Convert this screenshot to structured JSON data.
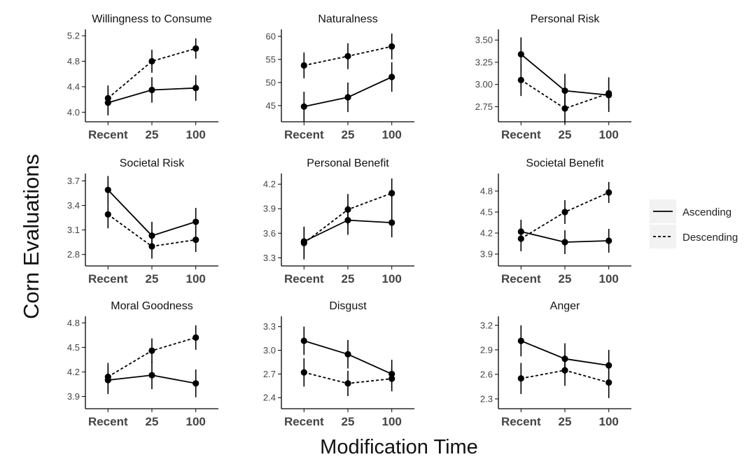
{
  "ylabel": "Corn Evaluations",
  "xlabel": "Modification Time",
  "legend": {
    "placement": "right",
    "items": [
      {
        "label": "Ascending",
        "style": "solid"
      },
      {
        "label": "Descending",
        "style": "dashed"
      }
    ]
  },
  "chart_data": [
    {
      "type": "line",
      "title": "Willingness to Consume",
      "categories": [
        "Recent",
        "25",
        "100"
      ],
      "ylim": [
        3.85,
        5.3
      ],
      "yticks": [
        4.0,
        4.4,
        4.8,
        5.2
      ],
      "ytick_labels": [
        "4.0",
        "4.4",
        "4.8",
        "5.2"
      ],
      "series": [
        {
          "name": "Ascending",
          "values": [
            4.15,
            4.35,
            4.38
          ],
          "errors": [
            0.2,
            0.2,
            0.2
          ]
        },
        {
          "name": "Descending",
          "values": [
            4.22,
            4.8,
            5.0
          ],
          "errors": [
            0.2,
            0.18,
            0.16
          ]
        }
      ]
    },
    {
      "type": "line",
      "title": "Naturalness",
      "categories": [
        "Recent",
        "25",
        "100"
      ],
      "ylim": [
        41.5,
        61.5
      ],
      "yticks": [
        45,
        50,
        55,
        60
      ],
      "ytick_labels": [
        "45",
        "50",
        "55",
        "60"
      ],
      "series": [
        {
          "name": "Ascending",
          "values": [
            44.8,
            46.8,
            51.2
          ],
          "errors": [
            3.2,
            3.2,
            3.2
          ]
        },
        {
          "name": "Descending",
          "values": [
            53.7,
            55.7,
            57.8
          ],
          "errors": [
            2.8,
            2.8,
            2.8
          ]
        }
      ]
    },
    {
      "type": "line",
      "title": "Personal Risk",
      "categories": [
        "Recent",
        "25",
        "100"
      ],
      "ylim": [
        2.58,
        3.62
      ],
      "yticks": [
        2.75,
        3.0,
        3.25,
        3.5
      ],
      "ytick_labels": [
        "2.75",
        "3.00",
        "3.25",
        "3.50"
      ],
      "series": [
        {
          "name": "Ascending",
          "values": [
            3.34,
            2.93,
            2.88
          ],
          "errors": [
            0.19,
            0.19,
            0.19
          ]
        },
        {
          "name": "Descending",
          "values": [
            3.05,
            2.73,
            2.9
          ],
          "errors": [
            0.18,
            0.17,
            0.18
          ]
        }
      ]
    },
    {
      "type": "line",
      "title": "Societal Risk",
      "categories": [
        "Recent",
        "25",
        "100"
      ],
      "ylim": [
        2.66,
        3.79
      ],
      "yticks": [
        2.8,
        3.1,
        3.4,
        3.7
      ],
      "ytick_labels": [
        "2.8",
        "3.1",
        "3.4",
        "3.7"
      ],
      "series": [
        {
          "name": "Ascending",
          "values": [
            3.59,
            3.03,
            3.2
          ],
          "errors": [
            0.17,
            0.17,
            0.17
          ]
        },
        {
          "name": "Descending",
          "values": [
            3.29,
            2.9,
            2.98
          ],
          "errors": [
            0.17,
            0.15,
            0.15
          ]
        }
      ]
    },
    {
      "type": "line",
      "title": "Personal Benefit",
      "categories": [
        "Recent",
        "25",
        "100"
      ],
      "ylim": [
        3.2,
        4.33
      ],
      "yticks": [
        3.3,
        3.6,
        3.9,
        4.2
      ],
      "ytick_labels": [
        "3.3",
        "3.6",
        "3.9",
        "4.2"
      ],
      "series": [
        {
          "name": "Ascending",
          "values": [
            3.5,
            3.76,
            3.73
          ],
          "errors": [
            0.18,
            0.18,
            0.18
          ]
        },
        {
          "name": "Descending",
          "values": [
            3.48,
            3.89,
            4.09
          ],
          "errors": [
            0.2,
            0.19,
            0.18
          ]
        }
      ]
    },
    {
      "type": "line",
      "title": "Societal Benefit",
      "categories": [
        "Recent",
        "25",
        "100"
      ],
      "ylim": [
        3.73,
        5.05
      ],
      "yticks": [
        3.9,
        4.2,
        4.5,
        4.8
      ],
      "ytick_labels": [
        "3.9",
        "4.2",
        "4.5",
        "4.8"
      ],
      "series": [
        {
          "name": "Ascending",
          "values": [
            4.22,
            4.07,
            4.09
          ],
          "errors": [
            0.17,
            0.17,
            0.17
          ]
        },
        {
          "name": "Descending",
          "values": [
            4.12,
            4.5,
            4.78
          ],
          "errors": [
            0.18,
            0.17,
            0.15
          ]
        }
      ]
    },
    {
      "type": "line",
      "title": "Moral Goodness",
      "categories": [
        "Recent",
        "25",
        "100"
      ],
      "ylim": [
        3.75,
        4.88
      ],
      "yticks": [
        3.9,
        4.2,
        4.5,
        4.8
      ],
      "ytick_labels": [
        "3.9",
        "4.2",
        "4.5",
        "4.8"
      ],
      "series": [
        {
          "name": "Ascending",
          "values": [
            4.1,
            4.16,
            4.06
          ],
          "errors": [
            0.17,
            0.17,
            0.17
          ]
        },
        {
          "name": "Descending",
          "values": [
            4.14,
            4.46,
            4.62
          ],
          "errors": [
            0.17,
            0.15,
            0.15
          ]
        }
      ]
    },
    {
      "type": "line",
      "title": "Disgust",
      "categories": [
        "Recent",
        "25",
        "100"
      ],
      "ylim": [
        2.26,
        3.43
      ],
      "yticks": [
        2.4,
        2.7,
        3.0,
        3.3
      ],
      "ytick_labels": [
        "2.4",
        "2.7",
        "3.0",
        "3.3"
      ],
      "series": [
        {
          "name": "Ascending",
          "values": [
            3.12,
            2.95,
            2.7
          ],
          "errors": [
            0.18,
            0.18,
            0.18
          ]
        },
        {
          "name": "Descending",
          "values": [
            2.72,
            2.58,
            2.64
          ],
          "errors": [
            0.18,
            0.16,
            0.16
          ]
        }
      ]
    },
    {
      "type": "line",
      "title": "Anger",
      "categories": [
        "Recent",
        "25",
        "100"
      ],
      "ylim": [
        2.18,
        3.31
      ],
      "yticks": [
        2.3,
        2.6,
        2.9,
        3.2
      ],
      "ytick_labels": [
        "2.3",
        "2.6",
        "2.9",
        "3.2"
      ],
      "series": [
        {
          "name": "Ascending",
          "values": [
            3.01,
            2.79,
            2.71
          ],
          "errors": [
            0.19,
            0.19,
            0.19
          ]
        },
        {
          "name": "Descending",
          "values": [
            2.55,
            2.65,
            2.5
          ],
          "errors": [
            0.19,
            0.19,
            0.19
          ]
        }
      ]
    }
  ]
}
